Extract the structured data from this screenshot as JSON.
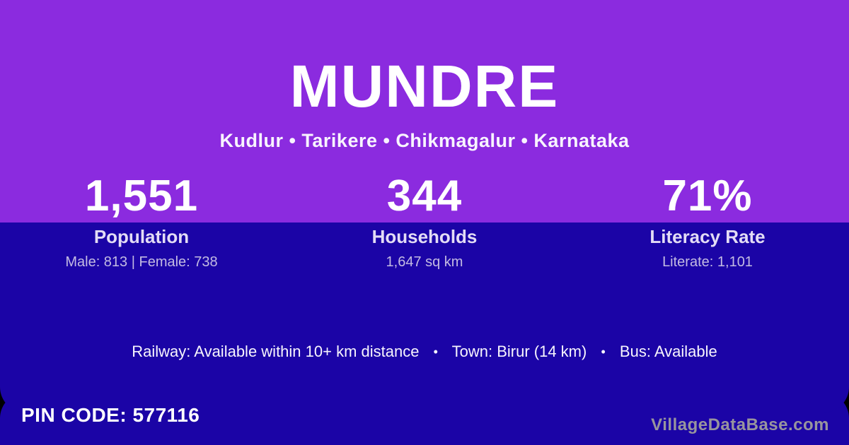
{
  "header": {
    "title": "MUNDRE",
    "breadcrumb": "Kudlur • Tarikere • Chikmagalur • Karnataka"
  },
  "stats": [
    {
      "value": "1,551",
      "label": "Population",
      "detail": "Male: 813 | Female: 738"
    },
    {
      "value": "344",
      "label": "Households",
      "detail": "1,647 sq km"
    },
    {
      "value": "71%",
      "label": "Literacy Rate",
      "detail": "Literate: 1,101"
    }
  ],
  "transport": {
    "railway": "Railway: Available within 10+ km distance",
    "town": "Town: Birur (14 km)",
    "bus": "Bus: Available",
    "separator": "•"
  },
  "footer": {
    "pin_code": "PIN CODE: 577116",
    "watermark": "VillageDataBase.com"
  },
  "colors": {
    "header_purple": "#8B2BDF",
    "body_indigo": "#1B04A6",
    "background_black": "#000000",
    "watermark_gray": "#98959D"
  }
}
